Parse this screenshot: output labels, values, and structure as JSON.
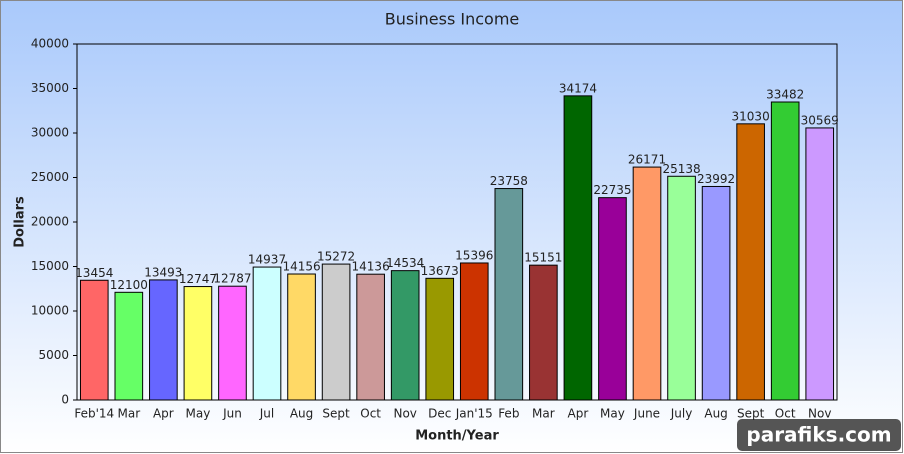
{
  "chart_data": {
    "type": "bar",
    "title": "Business Income",
    "x_label": "Month/Year",
    "y_label": "Dollars",
    "categories": [
      "Feb'14",
      "Mar",
      "Apr",
      "May",
      "Jun",
      "Jul",
      "Aug",
      "Sept",
      "Oct",
      "Nov",
      "Dec",
      "Jan'15",
      "Feb",
      "Mar",
      "Apr",
      "May",
      "June",
      "July",
      "Aug",
      "Sept",
      "Oct",
      "Nov"
    ],
    "values": [
      13454,
      12100,
      13493,
      12747,
      12787,
      14937,
      14156,
      15272,
      14136,
      14534,
      13673,
      15396,
      23758,
      15151,
      34174,
      22735,
      26171,
      25138,
      23992,
      31030,
      33482,
      30569
    ],
    "colors": [
      "#ff6666",
      "#66ff66",
      "#6666ff",
      "#ffff66",
      "#ff66ff",
      "#ccffff",
      "#ffd966",
      "#cccccc",
      "#cc9999",
      "#339966",
      "#999900",
      "#cc3300",
      "#669999",
      "#993333",
      "#006600",
      "#990099",
      "#ff9966",
      "#99ff99",
      "#9999ff",
      "#cc6600",
      "#33cc33",
      "#cc99ff"
    ],
    "ylim": [
      0,
      40000
    ],
    "yticks": [
      0,
      5000,
      10000,
      15000,
      20000,
      25000,
      30000,
      35000,
      40000
    ],
    "grid": false,
    "watermark": "parafiks.com"
  }
}
